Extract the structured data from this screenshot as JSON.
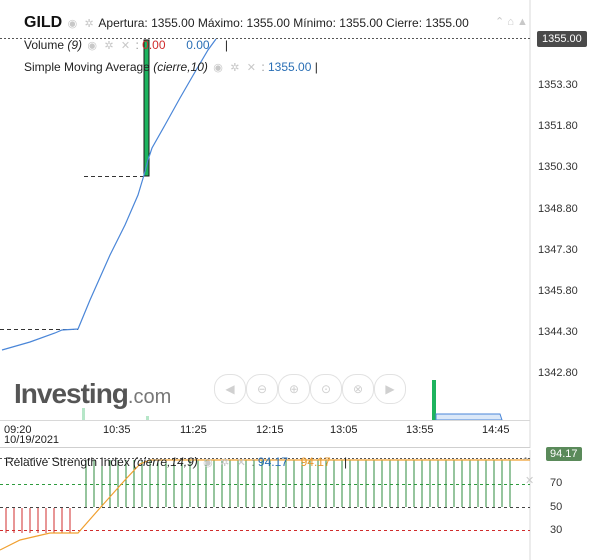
{
  "header": {
    "symbol": "GILD",
    "open_label": "Apertura:",
    "open": "1355.00",
    "high_label": "Máximo:",
    "high": "1355.00",
    "low_label": "Mínimo:",
    "low": "1355.00",
    "close_label": "Cierre:",
    "close": "1355.00"
  },
  "volume_legend": {
    "name": "Volume",
    "params": "(9)",
    "v1": "0.00",
    "v2": "0.00"
  },
  "sma_legend": {
    "name": "Simple Moving Average",
    "params": "(cierre,10)",
    "value": "1355.00"
  },
  "price_axis": [
    "1353.30",
    "1351.80",
    "1350.30",
    "1348.80",
    "1347.30",
    "1345.80",
    "1344.30",
    "1342.80"
  ],
  "current_price": "1355.00",
  "time_axis": [
    "09:20",
    "10:35",
    "11:25",
    "12:15",
    "13:05",
    "13:55",
    "14:45"
  ],
  "date_label": "10/19/2021",
  "logo": {
    "brand": "Investing",
    "suffix": ".com"
  },
  "rsi_legend": {
    "name": "Relative Strength Index",
    "params": "(cierre,14,9)",
    "v1": "94.17",
    "v2": "94.17"
  },
  "rsi_axis": [
    "70",
    "50",
    "30"
  ],
  "rsi_current": "94.17",
  "icons": [
    "eye-icon",
    "gear-icon",
    "close-icon",
    "chevron-up-icon",
    "home-icon",
    "triangle-icon",
    "zoom-out-icon",
    "zoom-in-icon",
    "arrow-left-icon",
    "arrow-right-icon"
  ],
  "colors": {
    "sma": "#4a86d8",
    "volume": "#1db35e",
    "rsi": "#f0a030",
    "rsi_signal_green": "#2e8b3e",
    "rsi_signal_red": "#d02c2c"
  }
}
